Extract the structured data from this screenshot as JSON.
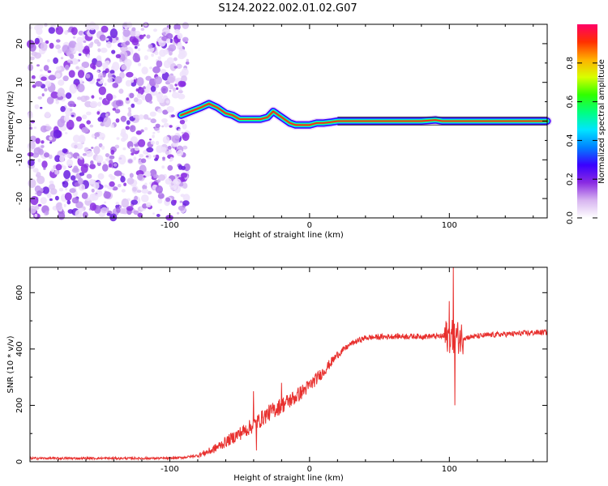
{
  "title": "S124.2022.002.01.02.G07",
  "chart_data": [
    {
      "type": "heatmap",
      "xlabel": "Height of straight line (km)",
      "ylabel": "Frequency (Hz)",
      "xlim": [
        -200,
        170
      ],
      "ylim": [
        -25,
        25
      ],
      "xticks": [
        -100,
        0,
        100
      ],
      "yticks": [
        -20,
        -10,
        0,
        10,
        20
      ],
      "colorbar": {
        "label": "Normalized spectral amplitude",
        "range": [
          0,
          1
        ],
        "ticks": [
          "0.0",
          "0.2",
          "0.4",
          "0.6",
          "0.8"
        ],
        "colors": [
          "#ffffff",
          "#d7b4f0",
          "#8a2be2",
          "#3a00ff",
          "#0080ff",
          "#00e5ff",
          "#00ff80",
          "#30ff00",
          "#d8ff00",
          "#ffb000",
          "#ff3000",
          "#ff0066"
        ]
      },
      "noise_region_x": [
        -200,
        -87
      ],
      "ridge": {
        "x": [
          -92,
          -85,
          -78,
          -72,
          -66,
          -60,
          -55,
          -50,
          -45,
          -40,
          -35,
          -30,
          -26,
          -22,
          -18,
          -14,
          -10,
          -5,
          0,
          5,
          10,
          15,
          20,
          30,
          40,
          60,
          80,
          90,
          95,
          100,
          120,
          150,
          170
        ],
        "y": [
          1.5,
          2.5,
          3.5,
          4.5,
          3.5,
          2.0,
          1.5,
          0.5,
          0.5,
          0.5,
          0.5,
          1.0,
          2.5,
          1.5,
          0.5,
          -0.5,
          -1.0,
          -1.0,
          -1.0,
          -0.5,
          -0.5,
          -0.3,
          0.0,
          0.0,
          0.0,
          0.0,
          0.0,
          0.3,
          0.0,
          0.0,
          0.0,
          0.0,
          0.0
        ]
      }
    },
    {
      "type": "line",
      "xlabel": "Height of straight line (km)",
      "ylabel": "SNR (10 * v/v)",
      "xlim": [
        -200,
        170
      ],
      "ylim": [
        0,
        690
      ],
      "xticks": [
        -100,
        0,
        100
      ],
      "yticks": [
        0,
        200,
        400,
        600
      ],
      "color": "#e8302e",
      "trend": {
        "x": [
          -200,
          -100,
          -90,
          -80,
          -70,
          -60,
          -50,
          -40,
          -30,
          -20,
          -10,
          0,
          10,
          20,
          30,
          40,
          60,
          80,
          90,
          100,
          110,
          130,
          150,
          170
        ],
        "y": [
          12,
          12,
          15,
          22,
          40,
          70,
          100,
          130,
          170,
          200,
          230,
          270,
          320,
          380,
          420,
          440,
          445,
          445,
          445,
          445,
          440,
          450,
          455,
          460
        ]
      },
      "spikes": [
        {
          "x": -40,
          "y": 250
        },
        {
          "x": -38,
          "y": 40
        },
        {
          "x": -20,
          "y": 280
        },
        {
          "x": 100,
          "y": 570
        },
        {
          "x": 103,
          "y": 690
        },
        {
          "x": 104,
          "y": 200
        }
      ]
    }
  ]
}
